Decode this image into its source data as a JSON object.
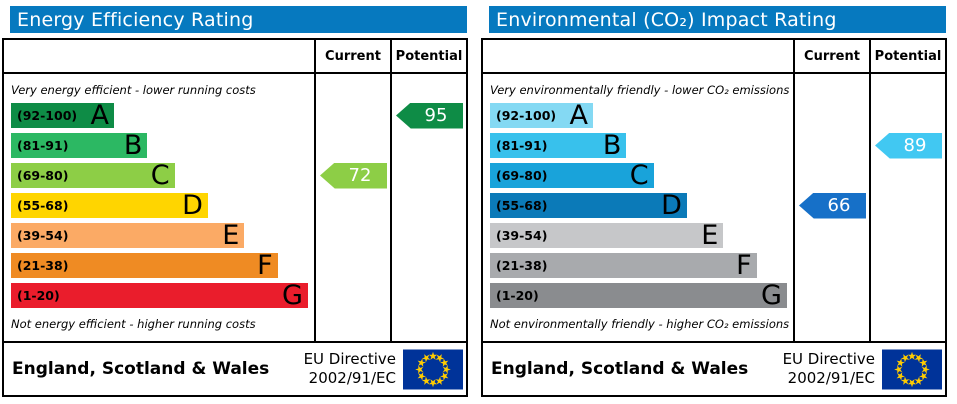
{
  "theme": {
    "header_bg": "#0679bf",
    "border_color": "#000000",
    "arrow_text_color": "#ffffff"
  },
  "eu_flag": {
    "background": "#003399",
    "star_color": "#ffcc00"
  },
  "charts": [
    {
      "title": "Energy Efficiency Rating",
      "column_headers": {
        "current": "Current",
        "potential": "Potential"
      },
      "top_caption": "Very energy efficient - lower running costs",
      "bottom_caption": "Not energy efficient - higher running costs",
      "bands": [
        {
          "letter": "A",
          "range": "(92-100)",
          "color": "#0e8c46",
          "width_pct": 34
        },
        {
          "letter": "B",
          "range": "(81-91)",
          "color": "#2cb863",
          "width_pct": 45
        },
        {
          "letter": "C",
          "range": "(69-80)",
          "color": "#8dce46",
          "width_pct": 54
        },
        {
          "letter": "D",
          "range": "(55-68)",
          "color": "#ffd500",
          "width_pct": 65
        },
        {
          "letter": "E",
          "range": "(39-54)",
          "color": "#fbaa65",
          "width_pct": 77
        },
        {
          "letter": "F",
          "range": "(21-38)",
          "color": "#ef8b23",
          "width_pct": 88
        },
        {
          "letter": "G",
          "range": "(1-20)",
          "color": "#ea1d2c",
          "width_pct": 98
        }
      ],
      "current": {
        "value": 72,
        "band": "C",
        "band_index": 2,
        "color": "#8dce46"
      },
      "potential": {
        "value": 95,
        "band": "A",
        "band_index": 0,
        "color": "#0e8c46"
      },
      "footer": {
        "region": "England, Scotland & Wales",
        "directive_line1": "EU Directive",
        "directive_line2": "2002/91/EC"
      }
    },
    {
      "title": "Environmental (CO₂) Impact Rating",
      "column_headers": {
        "current": "Current",
        "potential": "Potential"
      },
      "top_caption": "Very environmentally friendly - lower CO₂ emissions",
      "bottom_caption": "Not environmentally friendly - higher CO₂ emissions",
      "bands": [
        {
          "letter": "A",
          "range": "(92-100)",
          "color": "#84d9f3",
          "width_pct": 34
        },
        {
          "letter": "B",
          "range": "(81-91)",
          "color": "#38c1ec",
          "width_pct": 45
        },
        {
          "letter": "C",
          "range": "(69-80)",
          "color": "#19a3da",
          "width_pct": 54
        },
        {
          "letter": "D",
          "range": "(55-68)",
          "color": "#0b7ab8",
          "width_pct": 65
        },
        {
          "letter": "E",
          "range": "(39-54)",
          "color": "#c6c7c9",
          "width_pct": 77
        },
        {
          "letter": "F",
          "range": "(21-38)",
          "color": "#a8aaad",
          "width_pct": 88
        },
        {
          "letter": "G",
          "range": "(1-20)",
          "color": "#8a8c8f",
          "width_pct": 98
        }
      ],
      "current": {
        "value": 66,
        "band": "D",
        "band_index": 3,
        "color": "#1670c8"
      },
      "potential": {
        "value": 89,
        "band": "B",
        "band_index": 1,
        "color": "#41c8f2"
      },
      "footer": {
        "region": "England, Scotland & Wales",
        "directive_line1": "EU Directive",
        "directive_line2": "2002/91/EC"
      }
    }
  ],
  "chart_data": [
    {
      "type": "bar",
      "title": "Energy Efficiency Rating",
      "categories": [
        "A (92-100)",
        "B (81-91)",
        "C (69-80)",
        "D (55-68)",
        "E (39-54)",
        "F (21-38)",
        "G (1-20)"
      ],
      "band_bar_width_pct": [
        34,
        45,
        54,
        65,
        77,
        88,
        98
      ],
      "band_colors": [
        "#0e8c46",
        "#2cb863",
        "#8dce46",
        "#ffd500",
        "#fbaa65",
        "#ef8b23",
        "#ea1d2c"
      ],
      "series": [
        {
          "name": "Current",
          "values": [
            72
          ],
          "band": "C"
        },
        {
          "name": "Potential",
          "values": [
            95
          ],
          "band": "A"
        }
      ],
      "scale": [
        1,
        100
      ],
      "annotations": [
        "Very energy efficient - lower running costs",
        "Not energy efficient - higher running costs"
      ],
      "footer": "England, Scotland & Wales — EU Directive 2002/91/EC"
    },
    {
      "type": "bar",
      "title": "Environmental (CO₂) Impact Rating",
      "categories": [
        "A (92-100)",
        "B (81-91)",
        "C (69-80)",
        "D (55-68)",
        "E (39-54)",
        "F (21-38)",
        "G (1-20)"
      ],
      "band_bar_width_pct": [
        34,
        45,
        54,
        65,
        77,
        88,
        98
      ],
      "band_colors": [
        "#84d9f3",
        "#38c1ec",
        "#19a3da",
        "#0b7ab8",
        "#c6c7c9",
        "#a8aaad",
        "#8a8c8f"
      ],
      "series": [
        {
          "name": "Current",
          "values": [
            66
          ],
          "band": "D"
        },
        {
          "name": "Potential",
          "values": [
            89
          ],
          "band": "B"
        }
      ],
      "scale": [
        1,
        100
      ],
      "annotations": [
        "Very environmentally friendly - lower CO₂ emissions",
        "Not environmentally friendly - higher CO₂ emissions"
      ],
      "footer": "England, Scotland & Wales — EU Directive 2002/91/EC"
    }
  ]
}
